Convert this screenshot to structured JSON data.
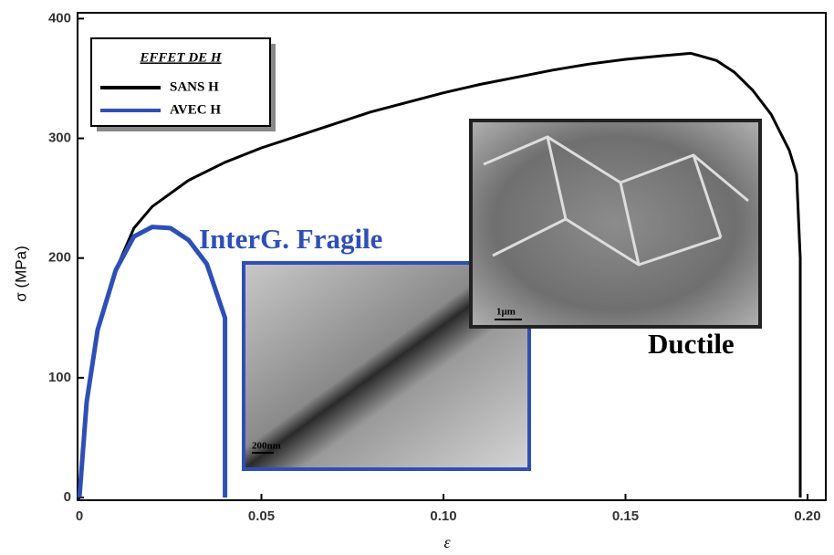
{
  "chart_data": {
    "type": "line",
    "xlabel": "ε",
    "ylabel": "σ (MPa)",
    "xlim": [
      0,
      0.205
    ],
    "ylim": [
      0,
      405
    ],
    "xticks": [
      0,
      0.05,
      {
        "value": 0.1,
        "label": "0.10"
      },
      0.15,
      {
        "value": 0.2,
        "label": "0.20"
      }
    ],
    "yticks": [
      0,
      100,
      200,
      300,
      400
    ],
    "legend": {
      "title": "EFFET DE H",
      "position": "upper left"
    },
    "series": [
      {
        "name": "SANS H",
        "color": "#000000",
        "x": [
          0,
          0.002,
          0.005,
          0.01,
          0.015,
          0.02,
          0.03,
          0.04,
          0.05,
          0.06,
          0.07,
          0.08,
          0.09,
          0.1,
          0.11,
          0.12,
          0.13,
          0.14,
          0.15,
          0.16,
          0.168,
          0.175,
          0.18,
          0.185,
          0.19,
          0.195,
          0.197,
          0.198,
          0.198
        ],
        "values": [
          0,
          80,
          140,
          190,
          225,
          243,
          265,
          280,
          292,
          302,
          312,
          322,
          330,
          338,
          345,
          351,
          357,
          362,
          366,
          369,
          371,
          365,
          355,
          340,
          320,
          290,
          270,
          200,
          0
        ]
      },
      {
        "name": "AVEC H",
        "color": "#2e4fb5",
        "x": [
          0,
          0.002,
          0.005,
          0.01,
          0.015,
          0.02,
          0.025,
          0.03,
          0.035,
          0.04,
          0.04
        ],
        "values": [
          0,
          80,
          140,
          190,
          218,
          226,
          225,
          215,
          195,
          150,
          0
        ]
      }
    ],
    "annotations": [
      "InterG. Fragile",
      "Ductile",
      "200nm",
      "1μm"
    ]
  }
}
